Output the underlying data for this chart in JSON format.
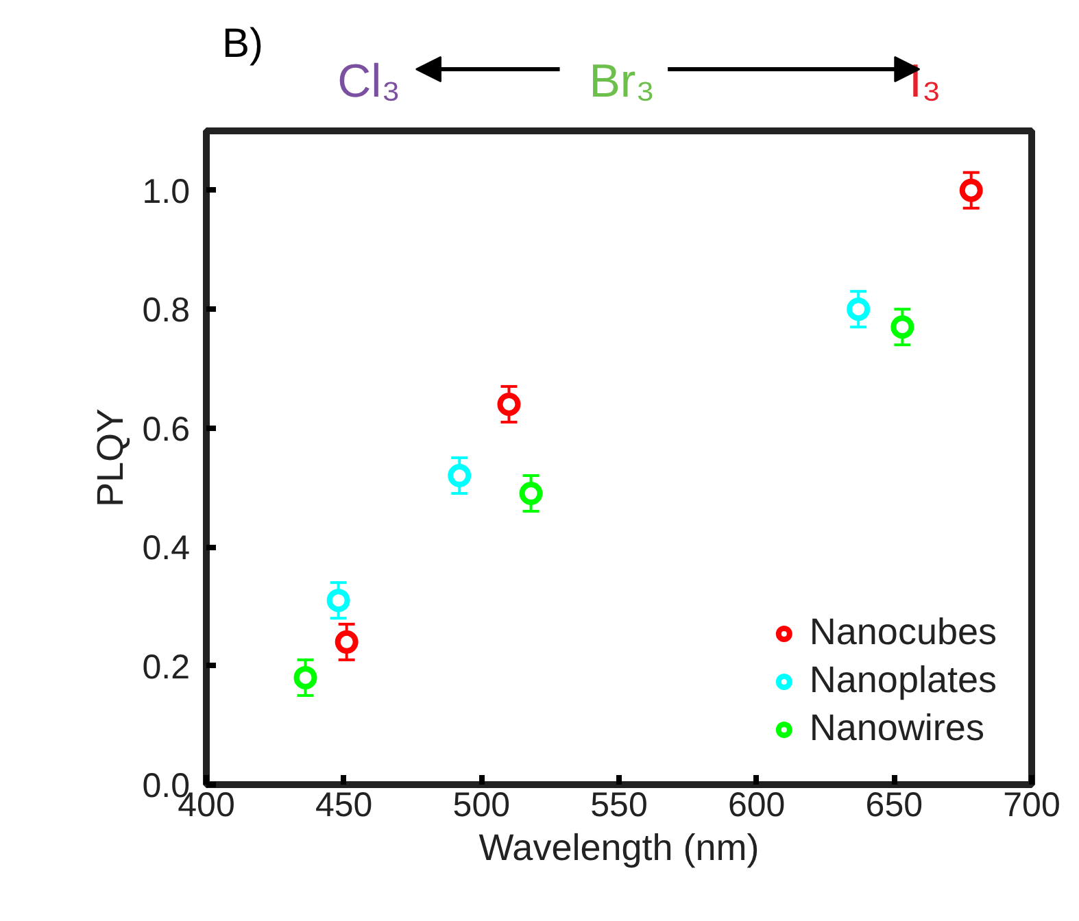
{
  "chart_data": {
    "type": "scatter",
    "xlabel": "Wavelength (nm)",
    "ylabel": "PLQY",
    "annotations": [
      "B)",
      "Cl₃",
      "Br₃",
      "I₃"
    ],
    "series": [
      {
        "name": "Nanocubes",
        "color": "#ff0000",
        "x": [
          451,
          510,
          678
        ],
        "values": [
          0.24,
          0.64,
          1.0
        ],
        "errors": [
          0.03,
          0.03,
          0.03
        ]
      },
      {
        "name": "Nanoplates",
        "color": "#00ffff",
        "x": [
          448,
          492,
          637
        ],
        "values": [
          0.31,
          0.52,
          0.8
        ],
        "errors": [
          0.03,
          0.03,
          0.03
        ]
      },
      {
        "name": "Nanowires",
        "color": "#00ff00",
        "x": [
          436,
          518,
          653
        ],
        "values": [
          0.18,
          0.49,
          0.77
        ],
        "errors": [
          0.03,
          0.03,
          0.03
        ]
      }
    ],
    "xlim": [
      400,
      700
    ],
    "xticks": [
      400,
      450,
      500,
      550,
      600,
      650,
      700
    ],
    "ylim": [
      0,
      1.1
    ],
    "yticks": [
      {
        "value": 0,
        "label": "0.0"
      },
      {
        "value": 0.2,
        "label": "0.2"
      },
      {
        "value": 0.4,
        "label": "0.4"
      },
      {
        "value": 0.6,
        "label": "0.6"
      },
      {
        "value": 0.8,
        "label": "0.8"
      },
      {
        "value": 1.0,
        "label": "1.0"
      }
    ],
    "marker": "circle",
    "legend": "bottom right",
    "grid": false
  }
}
